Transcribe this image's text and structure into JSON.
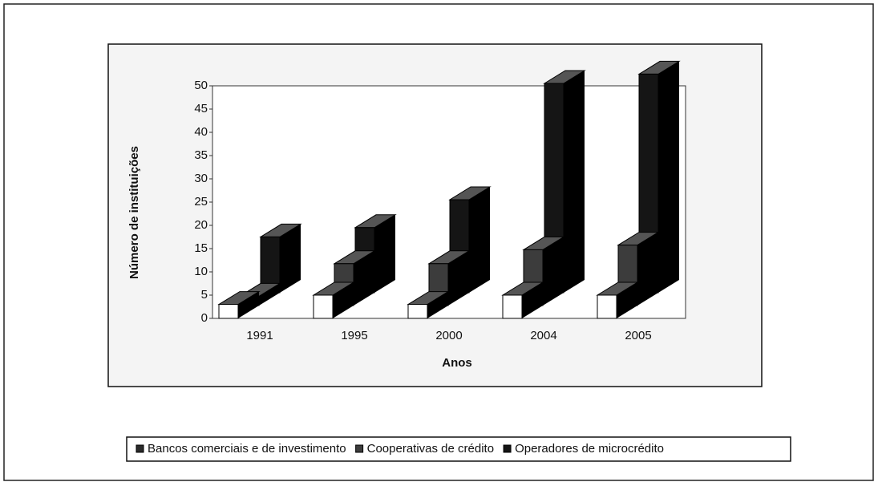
{
  "chart_data": {
    "type": "bar3d",
    "categories": [
      "1991",
      "1995",
      "2000",
      "2004",
      "2005"
    ],
    "series": [
      {
        "name": "Bancos comerciais e de investimento",
        "color": "#2a2a2a",
        "values": [
          3,
          5,
          3,
          5,
          5
        ]
      },
      {
        "name": "Cooperativas de crédito",
        "color": "#3c3c3c",
        "values": [
          2,
          9,
          9,
          12,
          13
        ]
      },
      {
        "name": "Operadores de microcrédito",
        "color": "#151515",
        "values": [
          12,
          14,
          20,
          45,
          47
        ]
      }
    ],
    "ylim": [
      0,
      50
    ],
    "yticks": [
      0,
      5,
      10,
      15,
      20,
      25,
      30,
      35,
      40,
      45,
      50
    ],
    "xlabel": "Anos",
    "ylabel": "Número de instituições"
  }
}
